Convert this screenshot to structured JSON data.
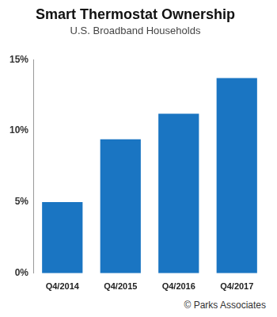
{
  "chart_data": {
    "type": "bar",
    "title": "Smart Thermostat Ownership",
    "subtitle": "U.S. Broadband Households",
    "categories": [
      "Q4/2014",
      "Q4/2015",
      "Q4/2016",
      "Q4/2017"
    ],
    "values": [
      5.0,
      9.4,
      11.2,
      13.7
    ],
    "color": "#1a75c2",
    "ylim": [
      0,
      15
    ],
    "yticks": [
      {
        "value": 0,
        "label": "0%"
      },
      {
        "value": 5,
        "label": "5%"
      },
      {
        "value": 10,
        "label": "10%"
      },
      {
        "value": 15,
        "label": "15%"
      }
    ],
    "grid": false,
    "annotation": "© Parks Associates"
  }
}
